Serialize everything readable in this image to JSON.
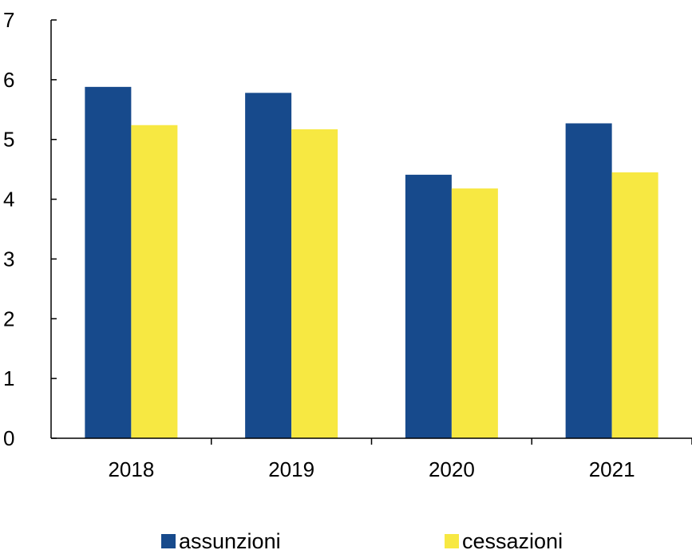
{
  "chart_data": {
    "type": "bar",
    "categories": [
      "2018",
      "2019",
      "2020",
      "2021"
    ],
    "series": [
      {
        "name": "assunzioni",
        "values": [
          5.88,
          5.78,
          4.41,
          5.27
        ],
        "color": "#174A8C"
      },
      {
        "name": "cessazioni",
        "values": [
          5.24,
          5.17,
          4.18,
          4.45
        ],
        "color": "#F7E842"
      }
    ],
    "ylim": [
      0,
      7
    ],
    "yticks": [
      "0",
      "1",
      "2",
      "3",
      "4",
      "5",
      "6",
      "7"
    ],
    "xlabel": "",
    "ylabel": "",
    "title": "",
    "grid": false,
    "legend_position": "bottom"
  }
}
